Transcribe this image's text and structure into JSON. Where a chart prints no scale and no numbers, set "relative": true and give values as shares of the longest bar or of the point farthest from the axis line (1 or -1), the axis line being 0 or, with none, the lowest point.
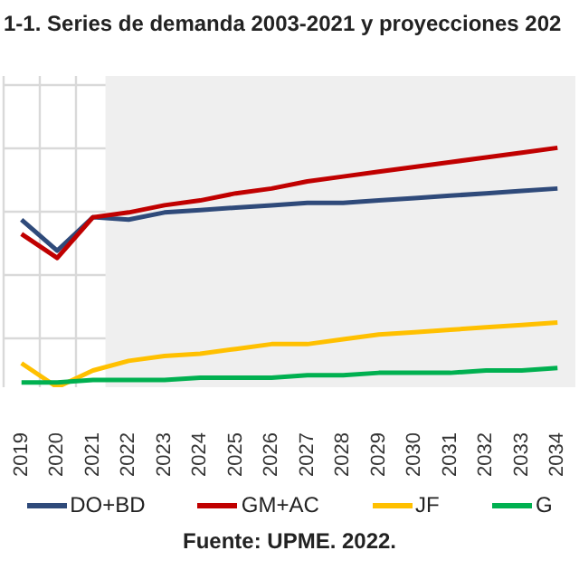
{
  "chart_data": {
    "type": "line",
    "title": "1-1. Series de demanda 2003-2021 y proyecciones 202",
    "relative": true,
    "grid": true,
    "legend": "bottom",
    "marker": "none",
    "line_style": "solid",
    "categories": [
      "2019",
      "2020",
      "2021",
      "2022",
      "2023",
      "2024",
      "2025",
      "2026",
      "2027",
      "2028",
      "2029",
      "2030",
      "2031",
      "2032",
      "2033",
      "2034"
    ],
    "bands": [
      {
        "axis": "x",
        "from": "2021",
        "to": "2034",
        "color": "#efefef"
      }
    ],
    "series": [
      {
        "name": "DO+BD",
        "color": "#2f4a7a",
        "values": [
          0.7,
          0.57,
          0.71,
          0.7,
          0.73,
          0.74,
          0.75,
          0.76,
          0.77,
          0.77,
          0.78,
          0.79,
          0.8,
          0.81,
          0.82,
          0.83
        ]
      },
      {
        "name": "GM+AC",
        "color": "#c00000",
        "values": [
          0.64,
          0.54,
          0.71,
          0.73,
          0.76,
          0.78,
          0.81,
          0.83,
          0.86,
          0.88,
          0.9,
          0.92,
          0.94,
          0.96,
          0.98,
          1
        ]
      },
      {
        "name": "JF",
        "color": "#ffc000",
        "values": [
          0.1,
          0,
          0.07,
          0.11,
          0.13,
          0.14,
          0.16,
          0.18,
          0.18,
          0.2,
          0.22,
          0.23,
          0.24,
          0.25,
          0.26,
          0.27
        ]
      },
      {
        "name": "G",
        "color": "#00b050",
        "values": [
          0.02,
          0.02,
          0.03,
          0.03,
          0.03,
          0.04,
          0.04,
          0.04,
          0.05,
          0.05,
          0.06,
          0.06,
          0.06,
          0.07,
          0.07,
          0.08
        ]
      }
    ],
    "annotations": [
      "Fuente: UPME. 2022."
    ]
  }
}
